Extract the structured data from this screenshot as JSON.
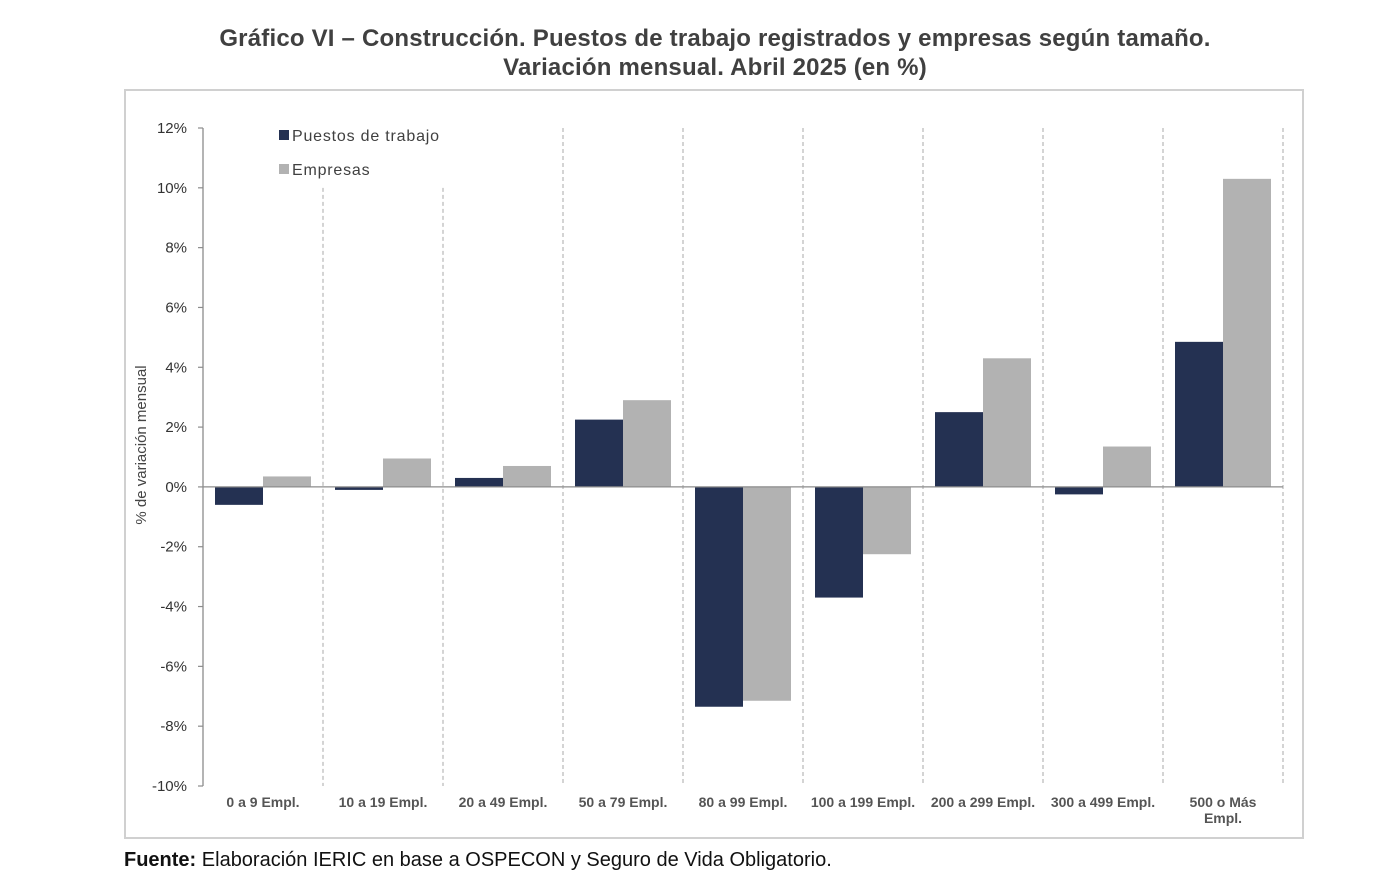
{
  "title_line1": "Gráfico VI – Construcción. Puestos de trabajo registrados y empresas según tamaño.",
  "title_line2": "Variación mensual. Abril 2025 (en %)",
  "source_label": "Fuente:",
  "source_text": "Elaboración IERIC en base a OSPECON y Seguro de Vida Obligatorio.",
  "colors": {
    "puestos": "#243152",
    "empresas": "#b2b2b2",
    "grid": "#b8b8b8",
    "axis": "#8c8c8c"
  },
  "chart_data": {
    "type": "bar",
    "categories": [
      "0 a 9 Empl.",
      "10 a 19 Empl.",
      "20 a 49 Empl.",
      "50 a 79 Empl.",
      "80 a 99 Empl.",
      "100 a 199 Empl.",
      "200 a 299 Empl.",
      "300 a 499 Empl.",
      "500 o Más Empl."
    ],
    "series": [
      {
        "name": "Puestos de trabajo",
        "values": [
          -0.6,
          -0.1,
          0.3,
          2.25,
          -7.35,
          -3.7,
          2.5,
          -0.25,
          4.85
        ]
      },
      {
        "name": "Empresas",
        "values": [
          0.35,
          0.95,
          0.7,
          2.9,
          -7.15,
          -2.25,
          4.3,
          1.35,
          10.3
        ]
      }
    ],
    "ylabel": "% de variación mensual",
    "ylim": [
      -10,
      12
    ],
    "yticks": [
      -10,
      -8,
      -6,
      -4,
      -2,
      0,
      2,
      4,
      6,
      8,
      10,
      12
    ],
    "ytick_labels": [
      "-10%",
      "-8%",
      "-6%",
      "-4%",
      "-2%",
      "0%",
      "2%",
      "4%",
      "6%",
      "8%",
      "10%",
      "12%"
    ],
    "legend_position": "top-left",
    "grid": "vertical dashed separators between categories"
  }
}
